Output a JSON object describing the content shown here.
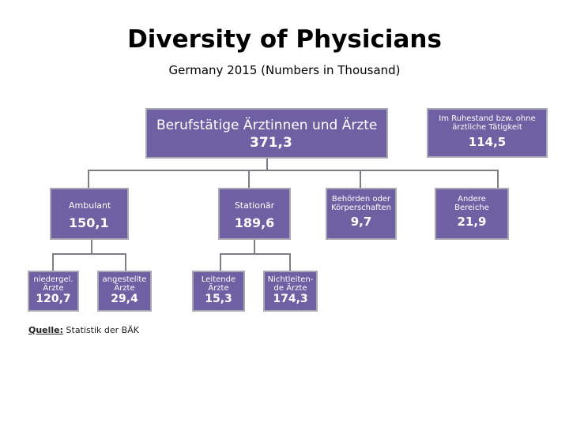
{
  "title": "Diversity of Physicians",
  "subtitle": "Germany 2015 (Numbers in Thousand)",
  "boxes": {
    "root": {
      "label": "Berufstätige Ärztinnen und Ärzte",
      "value": "371,3"
    },
    "retired": {
      "label1": "Im Ruhestand bzw. ohne",
      "label2": "ärztliche Tätigkeit",
      "value": "114,5"
    },
    "ambulant": {
      "label": "Ambulant",
      "value": "150,1"
    },
    "stationaer": {
      "label": "Stationär",
      "value": "189,6"
    },
    "behoerden": {
      "label1": "Behörden oder",
      "label2": "Körperschaften",
      "value": "9,7"
    },
    "andere": {
      "label1": "Andere",
      "label2": "Bereiche",
      "value": "21,9"
    },
    "niedergel": {
      "label1": "niedergel.",
      "label2": "Ärzte",
      "value": "120,7"
    },
    "angestellte": {
      "label1": "angestellte",
      "label2": "Ärzte",
      "value": "29,4"
    },
    "leitende": {
      "label1": "Leitende",
      "label2": "Ärzte",
      "value": "15,3"
    },
    "nichtleitende": {
      "label1": "Nichtleiten-",
      "label2": "de Ärzte",
      "value": "174,3"
    }
  },
  "source": {
    "prefix": "Quelle:",
    "text": " Statistik der BÄK"
  }
}
